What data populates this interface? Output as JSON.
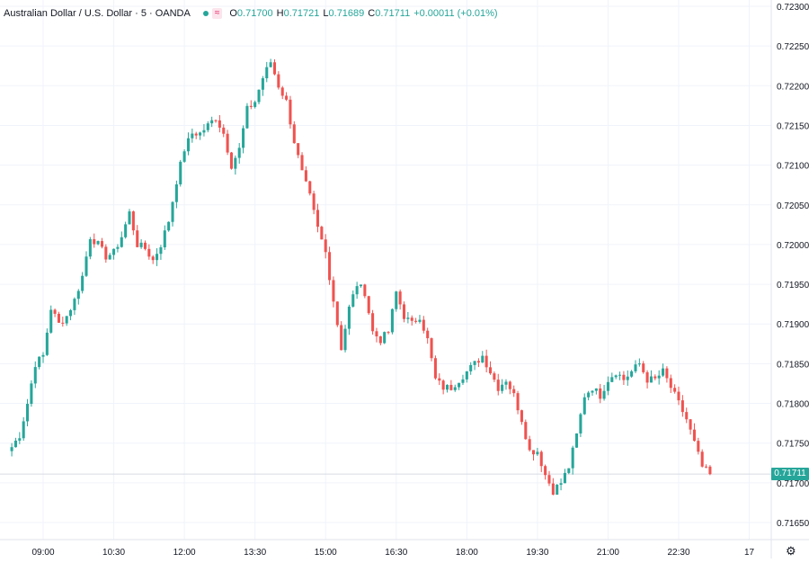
{
  "header": {
    "symbol": "Australian Dollar / U.S. Dollar · 5 · OANDA",
    "open_label": "O",
    "open": "0.71700",
    "high_label": "H",
    "high": "0.71721",
    "low_label": "L",
    "low": "0.71689",
    "close_label": "C",
    "close": "0.71711",
    "change": "+0.00011 (+0.01%)",
    "status_icon": "dot-icon",
    "wave_icon": "approx-icon",
    "wave_symbol": "≈"
  },
  "last_price_label": "0.71711",
  "settings_icon": "gear-icon",
  "settings_symbol": "⚙",
  "colors": {
    "up": "#26a69a",
    "down": "#ef5350",
    "grid": "#f0f3fa",
    "axis_text": "#131722",
    "last_line": "#d8dbe3",
    "wave_bg": "#fce4ec",
    "wave_fg": "#e91e63"
  },
  "chart_data": {
    "type": "candlestick",
    "title": "Australian Dollar / U.S. Dollar · 5 · OANDA",
    "interval": "5",
    "ylim": [
      0.7163,
      0.723
    ],
    "y_ticks": [
      "0.72300",
      "0.72250",
      "0.72200",
      "0.72150",
      "0.72100",
      "0.72050",
      "0.72000",
      "0.71950",
      "0.71900",
      "0.71850",
      "0.71800",
      "0.71750",
      "0.71700",
      "0.71650"
    ],
    "y_tick_values": [
      0.723,
      0.7225,
      0.722,
      0.7215,
      0.721,
      0.7205,
      0.72,
      0.7195,
      0.719,
      0.7185,
      0.718,
      0.7175,
      0.717,
      0.7165
    ],
    "x_ticks": [
      "09:00",
      "10:30",
      "12:00",
      "13:30",
      "15:00",
      "16:30",
      "18:00",
      "19:30",
      "21:00",
      "22:30",
      "17"
    ],
    "x_tick_index": [
      8,
      26,
      44,
      62,
      80,
      98,
      116,
      134,
      152,
      170,
      188
    ],
    "last_price": 0.71711,
    "close_path": [
      [
        0,
        0.71745
      ],
      [
        2,
        0.7176
      ],
      [
        4,
        0.718
      ],
      [
        6,
        0.7185
      ],
      [
        8,
        0.7186
      ],
      [
        10,
        0.7192
      ],
      [
        12,
        0.719
      ],
      [
        14,
        0.7191
      ],
      [
        16,
        0.7193
      ],
      [
        18,
        0.7196
      ],
      [
        20,
        0.7201
      ],
      [
        22,
        0.72
      ],
      [
        24,
        0.71985
      ],
      [
        26,
        0.7199
      ],
      [
        28,
        0.7201
      ],
      [
        30,
        0.7204
      ],
      [
        32,
        0.72
      ],
      [
        34,
        0.71995
      ],
      [
        36,
        0.7198
      ],
      [
        38,
        0.72
      ],
      [
        40,
        0.7203
      ],
      [
        42,
        0.7208
      ],
      [
        44,
        0.7212
      ],
      [
        46,
        0.7214
      ],
      [
        48,
        0.7214
      ],
      [
        50,
        0.7215
      ],
      [
        52,
        0.7216
      ],
      [
        54,
        0.7214
      ],
      [
        56,
        0.721
      ],
      [
        58,
        0.7212
      ],
      [
        60,
        0.7217
      ],
      [
        62,
        0.7218
      ],
      [
        64,
        0.7221
      ],
      [
        66,
        0.7223
      ],
      [
        68,
        0.722
      ],
      [
        70,
        0.7218
      ],
      [
        72,
        0.7213
      ],
      [
        74,
        0.7209
      ],
      [
        76,
        0.7206
      ],
      [
        78,
        0.7202
      ],
      [
        80,
        0.7199
      ],
      [
        82,
        0.7193
      ],
      [
        84,
        0.7187
      ],
      [
        86,
        0.7192
      ],
      [
        88,
        0.7195
      ],
      [
        90,
        0.7194
      ],
      [
        92,
        0.7189
      ],
      [
        94,
        0.7188
      ],
      [
        96,
        0.7189
      ],
      [
        98,
        0.7194
      ],
      [
        100,
        0.7191
      ],
      [
        102,
        0.719
      ],
      [
        104,
        0.7191
      ],
      [
        106,
        0.7188
      ],
      [
        108,
        0.7183
      ],
      [
        110,
        0.7182
      ],
      [
        112,
        0.7182
      ],
      [
        114,
        0.7183
      ],
      [
        116,
        0.7184
      ],
      [
        118,
        0.7185
      ],
      [
        120,
        0.7186
      ],
      [
        122,
        0.7184
      ],
      [
        124,
        0.7182
      ],
      [
        126,
        0.7183
      ],
      [
        128,
        0.7181
      ],
      [
        130,
        0.7178
      ],
      [
        132,
        0.7174
      ],
      [
        134,
        0.7174
      ],
      [
        136,
        0.7171
      ],
      [
        138,
        0.7169
      ],
      [
        140,
        0.717
      ],
      [
        142,
        0.7172
      ],
      [
        144,
        0.7176
      ],
      [
        146,
        0.7181
      ],
      [
        148,
        0.7182
      ],
      [
        150,
        0.7181
      ],
      [
        152,
        0.7183
      ],
      [
        154,
        0.7184
      ],
      [
        156,
        0.7183
      ],
      [
        158,
        0.7184
      ],
      [
        160,
        0.7185
      ],
      [
        162,
        0.7183
      ],
      [
        164,
        0.7183
      ],
      [
        166,
        0.7184
      ],
      [
        168,
        0.7182
      ],
      [
        170,
        0.718
      ],
      [
        172,
        0.7178
      ],
      [
        174,
        0.7175
      ],
      [
        176,
        0.7172
      ],
      [
        178,
        0.71711
      ]
    ],
    "volatility": 0.0001,
    "seed": 7
  }
}
